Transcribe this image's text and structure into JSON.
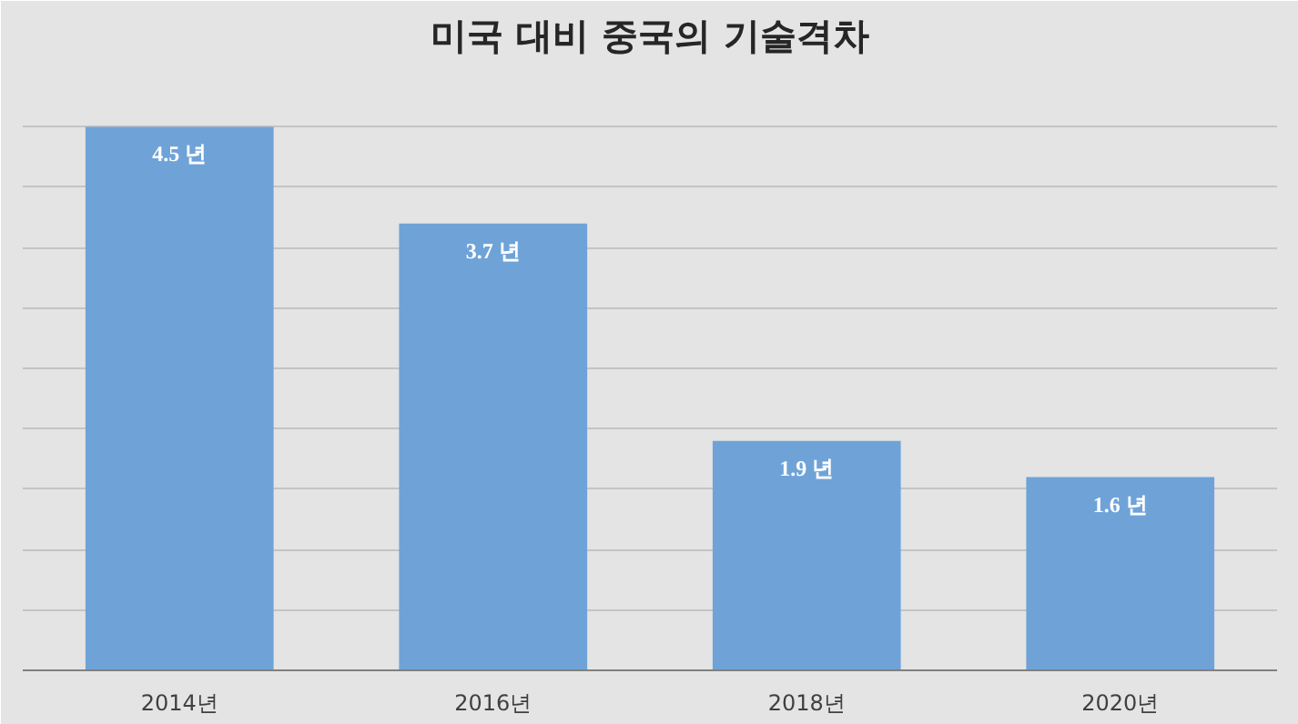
{
  "chart_data": {
    "type": "bar",
    "title": "미국 대비 중국의 기술격차",
    "categories": [
      "2014년",
      "2016년",
      "2018년",
      "2020년"
    ],
    "values": [
      4.5,
      3.7,
      1.9,
      1.6
    ],
    "value_labels": [
      "4.5 년",
      "3.7 년",
      "1.9 년",
      "1.6 년"
    ],
    "color": "#6fa3d8",
    "ylim": [
      0,
      5
    ],
    "yticks": [
      {
        "value": 0,
        "label": null
      },
      {
        "value": 0.5,
        "label": null
      },
      {
        "value": 1,
        "label": null
      },
      {
        "value": 1.5,
        "label": null
      },
      {
        "value": 2,
        "label": null
      },
      {
        "value": 2.5,
        "label": null
      },
      {
        "value": 3,
        "label": null
      },
      {
        "value": 3.5,
        "label": null
      },
      {
        "value": 4,
        "label": null
      },
      {
        "value": 4.5,
        "label": null
      },
      {
        "value": 5,
        "label": null
      }
    ],
    "grid": "y",
    "tick_labels": "x"
  }
}
